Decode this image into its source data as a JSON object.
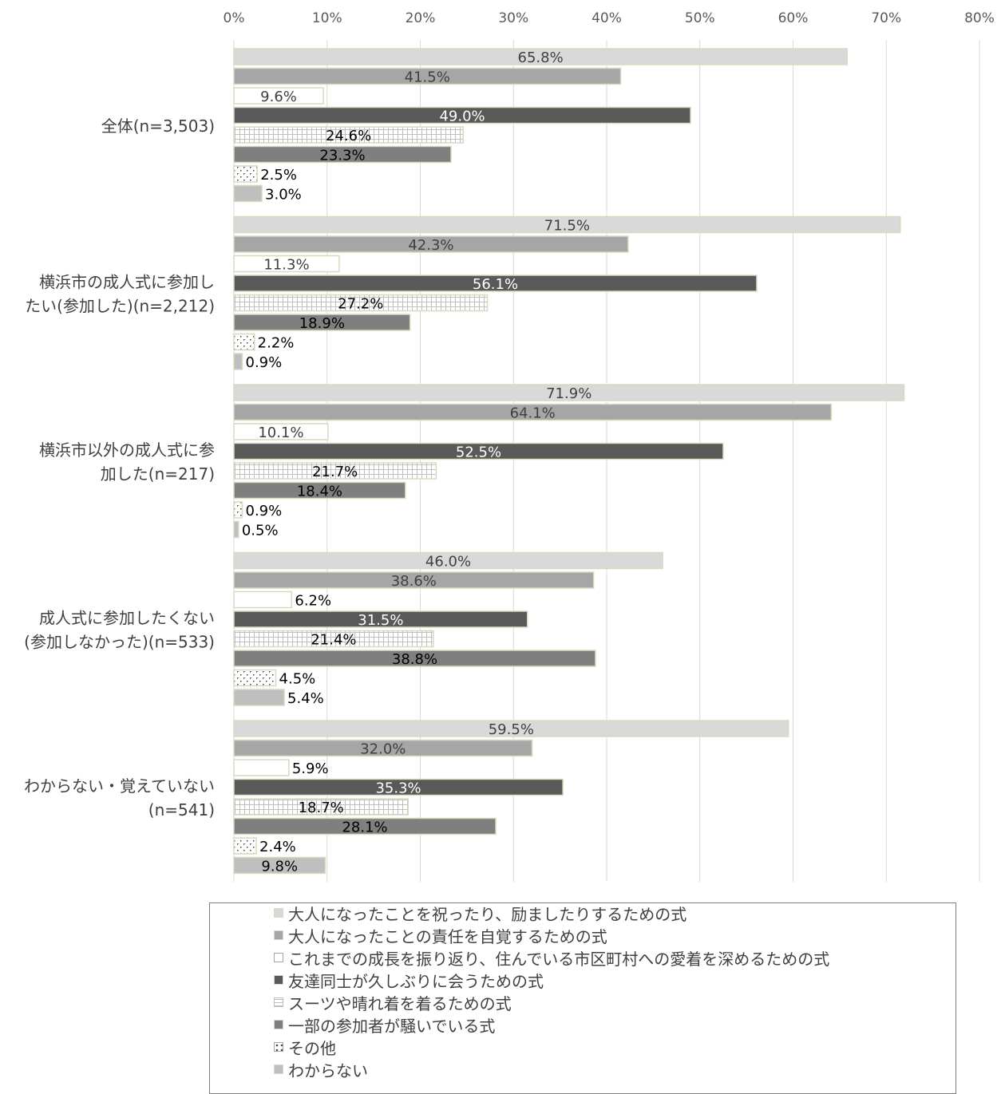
{
  "chart_data": {
    "type": "bar",
    "orientation": "horizontal",
    "xlim": [
      0,
      80
    ],
    "x_ticks": [
      "0%",
      "10%",
      "20%",
      "30%",
      "40%",
      "50%",
      "60%",
      "70%",
      "80%"
    ],
    "x_axis_position": "top",
    "grid": true,
    "legend_position": "bottom",
    "categories": [
      [
        "全体(n=3,503)"
      ],
      [
        "横浜市の成人式に参加し",
        "たい(参加した)(n=2,212)"
      ],
      [
        "横浜市以外の成人式に参",
        "加した(n=217)"
      ],
      [
        "成人式に参加したくない",
        "(参加しなかった)(n=533)"
      ],
      [
        "わからない・覚えていない",
        "(n=541)"
      ]
    ],
    "series": [
      {
        "name": "大人になったことを祝ったり、励ましたりするための式",
        "color": "#d9d9d9",
        "pattern": "solid",
        "label_color": "#404040",
        "values": [
          65.8,
          71.5,
          71.9,
          46.0,
          59.5
        ]
      },
      {
        "name": "大人になったことの責任を自覚するための式",
        "color": "#a6a6a6",
        "pattern": "solid",
        "label_color": "#404040",
        "values": [
          41.5,
          42.3,
          64.1,
          38.6,
          32.0
        ]
      },
      {
        "name": "これまでの成長を振り返り、住んでいる市区町村への愛着を深めるための式",
        "color": "#ffffff",
        "pattern": "solid",
        "label_color": "#404040",
        "values": [
          9.6,
          11.3,
          10.1,
          6.2,
          5.9
        ]
      },
      {
        "name": "友達同士が久しぶりに会うための式",
        "color": "#595959",
        "pattern": "solid",
        "label_color": "#ffffff",
        "values": [
          49.0,
          56.1,
          52.5,
          31.5,
          35.3
        ]
      },
      {
        "name": "スーツや晴れ着を着るための式",
        "color": "#ffffff",
        "pattern": "grid",
        "label_color": "#000000",
        "values": [
          24.6,
          27.2,
          21.7,
          21.4,
          18.7
        ]
      },
      {
        "name": "一部の参加者が騒いでいる式",
        "color": "#7f7f7f",
        "pattern": "solid",
        "label_color": "#000000",
        "values": [
          23.3,
          18.9,
          18.4,
          38.8,
          28.1
        ]
      },
      {
        "name": "その他",
        "color": "#ffffff",
        "pattern": "dots",
        "label_color": "#000000",
        "values": [
          2.5,
          2.2,
          0.9,
          4.5,
          2.4
        ]
      },
      {
        "name": "わからない",
        "color": "#bfbfbf",
        "pattern": "solid",
        "label_color": "#000000",
        "values": [
          3.0,
          0.9,
          0.5,
          5.4,
          9.8
        ]
      }
    ]
  }
}
